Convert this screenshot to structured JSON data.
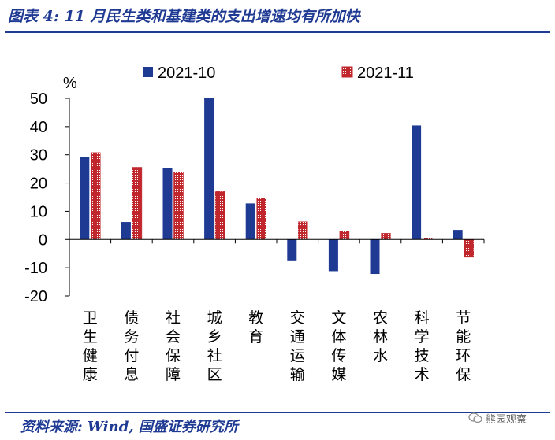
{
  "header": {
    "title": "图表 4:  11 月民生类和基建类的支出增速均有所加快"
  },
  "footer": {
    "source": "资料来源:  Wind, 国盛证券研究所"
  },
  "watermark": {
    "text": "熊园观察",
    "icon": "wechat-icon"
  },
  "colors": {
    "series_2021_10": "#1F3A93",
    "series_2021_11": "#C0272D",
    "axis": "#000000",
    "brand": "#1F3A93"
  },
  "chart_data": {
    "type": "bar",
    "ylabel": "%",
    "ylim": [
      -20,
      50
    ],
    "yticks": [
      50,
      40,
      30,
      20,
      10,
      0,
      -10,
      -20
    ],
    "grid": false,
    "legend_position": "top",
    "categories": [
      [
        "卫",
        "生",
        "健",
        "康"
      ],
      [
        "债",
        "务",
        "付",
        "息"
      ],
      [
        "社",
        "会",
        "保",
        "障"
      ],
      [
        "城",
        "乡",
        "社",
        "区"
      ],
      [
        "教",
        "育"
      ],
      [
        "交",
        "通",
        "运",
        "输"
      ],
      [
        "文",
        "体",
        "传",
        "媒"
      ],
      [
        "农",
        "林",
        "水"
      ],
      [
        "科",
        "学",
        "技",
        "术"
      ],
      [
        "节",
        "能",
        "环",
        "保"
      ]
    ],
    "series": [
      {
        "name": "2021-10",
        "values": [
          29.3,
          6.2,
          25.4,
          50.0,
          12.8,
          -7.4,
          -11.2,
          -12.2,
          40.4,
          3.4
        ]
      },
      {
        "name": "2021-11",
        "values": [
          30.8,
          25.6,
          23.9,
          17.0,
          14.7,
          6.3,
          3.0,
          2.2,
          0.5,
          -6.3
        ]
      }
    ]
  }
}
